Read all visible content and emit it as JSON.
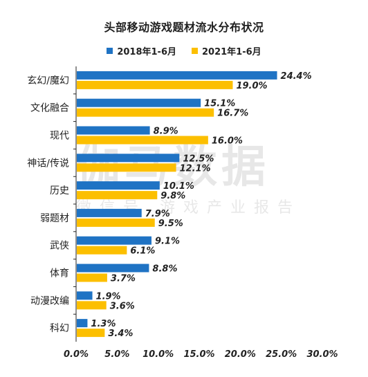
{
  "colors": {
    "series_2018": "#1f73c4",
    "series_2021": "#fcbf00",
    "axis": "#222222"
  },
  "watermark": {
    "main": "伽马数据",
    "sub": "微信号  游戏产业报告"
  },
  "chart_data": {
    "type": "bar",
    "orientation": "horizontal",
    "title": "头部移动游戏题材流水分布状况",
    "categories": [
      "玄幻/魔幻",
      "文化融合",
      "现代",
      "神话/传说",
      "历史",
      "弱题材",
      "武侠",
      "体育",
      "动漫改编",
      "科幻"
    ],
    "series": [
      {
        "name": "2018年1-6月",
        "values": [
          24.4,
          15.1,
          8.9,
          12.5,
          10.1,
          7.9,
          9.1,
          8.8,
          1.9,
          1.3
        ],
        "labels": [
          "24.4%",
          "15.1%",
          "8.9%",
          "12.5%",
          "10.1%",
          "7.9%",
          "9.1%",
          "8.8%",
          "1.9%",
          "1.3%"
        ]
      },
      {
        "name": "2021年1-6月",
        "values": [
          19.0,
          16.7,
          16.0,
          12.1,
          9.8,
          9.5,
          6.1,
          3.7,
          3.6,
          3.4
        ],
        "labels": [
          "19.0%",
          "16.7%",
          "16.0%",
          "12.1%",
          "9.8%",
          "9.5%",
          "6.1%",
          "3.7%",
          "3.6%",
          "3.4%"
        ]
      }
    ],
    "xlim": [
      0,
      30
    ],
    "xticks": [
      0,
      5,
      10,
      15,
      20,
      25,
      30
    ],
    "xtick_labels": [
      "0.0%",
      "5.0%",
      "10.0%",
      "15.0%",
      "20.0%",
      "25.0%",
      "30.0%"
    ],
    "legend_position": "top-center",
    "grid": false
  }
}
